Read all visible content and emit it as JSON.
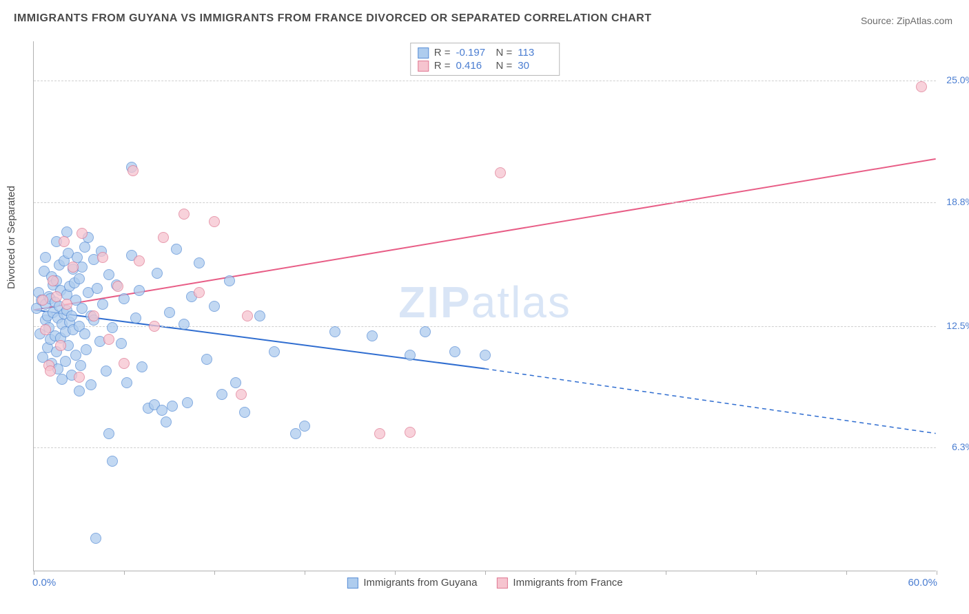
{
  "title": "IMMIGRANTS FROM GUYANA VS IMMIGRANTS FROM FRANCE DIVORCED OR SEPARATED CORRELATION CHART",
  "source": "Source: ZipAtlas.com",
  "ylabel": "Divorced or Separated",
  "watermark_a": "ZIP",
  "watermark_b": "atlas",
  "chart": {
    "type": "scatter",
    "xlim": [
      0,
      60
    ],
    "ylim": [
      0,
      27
    ],
    "x_start_label": "0.0%",
    "x_end_label": "60.0%",
    "xtick_positions": [
      0,
      6,
      12,
      18,
      24,
      30,
      36,
      42,
      48,
      54,
      60
    ],
    "y_gridlines": [
      {
        "y": 6.3,
        "label": "6.3%"
      },
      {
        "y": 12.5,
        "label": "12.5%"
      },
      {
        "y": 18.8,
        "label": "18.8%"
      },
      {
        "y": 25.0,
        "label": "25.0%"
      }
    ],
    "background_color": "#ffffff",
    "grid_color": "#cfcfcf",
    "axis_color": "#b0b0b0",
    "tick_label_color": "#4a7dd1",
    "series": [
      {
        "key": "guyana",
        "label": "Immigrants from Guyana",
        "marker_fill": "#aeccee",
        "marker_stroke": "#5a8fd6",
        "marker_opacity": 0.75,
        "marker_radius": 8,
        "line_color": "#2f6dd0",
        "line_width": 2,
        "R": "-0.197",
        "N": "113",
        "trend": {
          "x1": 0,
          "y1": 13.3,
          "x2_solid": 30,
          "y2_solid": 10.3,
          "x2": 60,
          "y2": 7.0,
          "dashed_after_solid": true
        },
        "points": [
          [
            0.2,
            13.4
          ],
          [
            0.3,
            14.2
          ],
          [
            0.4,
            12.1
          ],
          [
            0.5,
            13.8
          ],
          [
            0.6,
            10.9
          ],
          [
            0.7,
            15.3
          ],
          [
            0.8,
            12.8
          ],
          [
            0.8,
            13.6
          ],
          [
            0.9,
            13.0
          ],
          [
            0.9,
            11.4
          ],
          [
            1.0,
            14.0
          ],
          [
            1.0,
            12.4
          ],
          [
            1.1,
            13.9
          ],
          [
            1.1,
            11.8
          ],
          [
            1.2,
            15.0
          ],
          [
            1.2,
            10.6
          ],
          [
            1.3,
            13.2
          ],
          [
            1.3,
            14.6
          ],
          [
            1.4,
            12.0
          ],
          [
            1.4,
            13.7
          ],
          [
            1.5,
            11.2
          ],
          [
            1.5,
            14.8
          ],
          [
            1.6,
            12.9
          ],
          [
            1.6,
            10.3
          ],
          [
            1.7,
            13.5
          ],
          [
            1.7,
            15.6
          ],
          [
            1.8,
            11.9
          ],
          [
            1.8,
            14.3
          ],
          [
            1.9,
            12.6
          ],
          [
            1.9,
            9.8
          ],
          [
            2.0,
            13.1
          ],
          [
            2.0,
            15.8
          ],
          [
            2.1,
            12.2
          ],
          [
            2.1,
            10.7
          ],
          [
            2.2,
            14.1
          ],
          [
            2.2,
            13.3
          ],
          [
            2.3,
            11.5
          ],
          [
            2.3,
            16.2
          ],
          [
            2.4,
            12.7
          ],
          [
            2.4,
            14.5
          ],
          [
            2.5,
            13.0
          ],
          [
            2.5,
            10.0
          ],
          [
            2.6,
            15.4
          ],
          [
            2.6,
            12.3
          ],
          [
            2.7,
            14.7
          ],
          [
            2.8,
            11.0
          ],
          [
            2.8,
            13.8
          ],
          [
            2.9,
            16.0
          ],
          [
            3.0,
            12.5
          ],
          [
            3.0,
            14.9
          ],
          [
            3.1,
            10.5
          ],
          [
            3.2,
            13.4
          ],
          [
            3.2,
            15.5
          ],
          [
            3.4,
            12.1
          ],
          [
            3.4,
            16.5
          ],
          [
            3.5,
            11.3
          ],
          [
            3.6,
            14.2
          ],
          [
            3.8,
            13.0
          ],
          [
            3.8,
            9.5
          ],
          [
            4.0,
            15.9
          ],
          [
            4.0,
            12.8
          ],
          [
            4.2,
            14.4
          ],
          [
            4.4,
            11.7
          ],
          [
            4.5,
            16.3
          ],
          [
            4.6,
            13.6
          ],
          [
            4.8,
            10.2
          ],
          [
            5.0,
            15.1
          ],
          [
            5.2,
            12.4
          ],
          [
            5.5,
            14.6
          ],
          [
            5.8,
            11.6
          ],
          [
            6.0,
            13.9
          ],
          [
            6.2,
            9.6
          ],
          [
            6.5,
            20.6
          ],
          [
            6.5,
            16.1
          ],
          [
            6.8,
            12.9
          ],
          [
            7.0,
            14.3
          ],
          [
            7.2,
            10.4
          ],
          [
            7.6,
            8.3
          ],
          [
            8.0,
            8.5
          ],
          [
            8.2,
            15.2
          ],
          [
            8.5,
            8.2
          ],
          [
            8.8,
            7.6
          ],
          [
            9.0,
            13.2
          ],
          [
            9.2,
            8.4
          ],
          [
            9.5,
            16.4
          ],
          [
            10.0,
            12.6
          ],
          [
            10.2,
            8.6
          ],
          [
            10.5,
            14.0
          ],
          [
            11.0,
            15.7
          ],
          [
            11.5,
            10.8
          ],
          [
            12.0,
            13.5
          ],
          [
            12.5,
            9.0
          ],
          [
            13.0,
            14.8
          ],
          [
            13.4,
            9.6
          ],
          [
            14.0,
            8.1
          ],
          [
            15.0,
            13.0
          ],
          [
            16.0,
            11.2
          ],
          [
            17.4,
            7.0
          ],
          [
            18.0,
            7.4
          ],
          [
            20.0,
            12.2
          ],
          [
            22.5,
            12.0
          ],
          [
            25.0,
            11.0
          ],
          [
            26.0,
            12.2
          ],
          [
            28.0,
            11.2
          ],
          [
            30.0,
            11.0
          ],
          [
            4.1,
            1.7
          ],
          [
            5.0,
            7.0
          ],
          [
            5.2,
            5.6
          ],
          [
            3.0,
            9.2
          ],
          [
            2.2,
            17.3
          ],
          [
            1.5,
            16.8
          ],
          [
            0.8,
            16.0
          ],
          [
            3.6,
            17.0
          ]
        ]
      },
      {
        "key": "france",
        "label": "Immigrants from France",
        "marker_fill": "#f6c4cf",
        "marker_stroke": "#e07a94",
        "marker_opacity": 0.75,
        "marker_radius": 8,
        "line_color": "#e85d86",
        "line_width": 2,
        "R": "0.416",
        "N": "30",
        "trend": {
          "x1": 0,
          "y1": 13.3,
          "x2_solid": 60,
          "y2_solid": 21.0,
          "x2": 60,
          "y2": 21.0,
          "dashed_after_solid": false
        },
        "points": [
          [
            0.6,
            13.8
          ],
          [
            0.8,
            12.3
          ],
          [
            1.0,
            10.5
          ],
          [
            1.1,
            10.2
          ],
          [
            1.3,
            14.8
          ],
          [
            1.5,
            14.0
          ],
          [
            1.8,
            11.5
          ],
          [
            2.0,
            16.8
          ],
          [
            2.2,
            13.6
          ],
          [
            2.6,
            15.5
          ],
          [
            3.0,
            9.9
          ],
          [
            3.2,
            17.2
          ],
          [
            4.0,
            13.0
          ],
          [
            4.6,
            16.0
          ],
          [
            5.0,
            11.8
          ],
          [
            5.6,
            14.5
          ],
          [
            6.0,
            10.6
          ],
          [
            6.6,
            20.4
          ],
          [
            7.0,
            15.8
          ],
          [
            8.0,
            12.5
          ],
          [
            8.6,
            17.0
          ],
          [
            10.0,
            18.2
          ],
          [
            11.0,
            14.2
          ],
          [
            12.0,
            17.8
          ],
          [
            13.8,
            9.0
          ],
          [
            14.2,
            13.0
          ],
          [
            23.0,
            7.0
          ],
          [
            25.0,
            7.1
          ],
          [
            31.0,
            20.3
          ],
          [
            59.0,
            24.7
          ]
        ]
      }
    ]
  }
}
